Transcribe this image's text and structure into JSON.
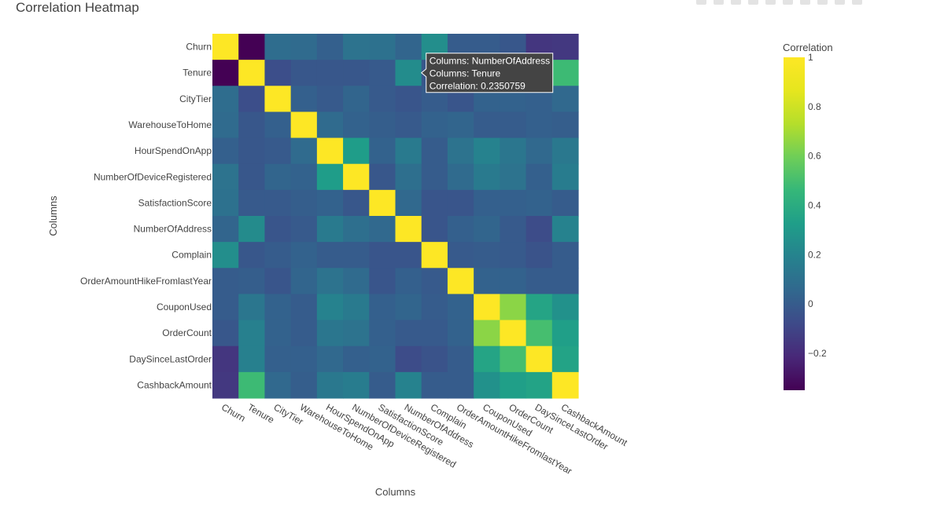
{
  "page": {
    "title": "Correlation Heatmap"
  },
  "modebar": {
    "icons": [
      "camera-icon",
      "zoom-icon",
      "pan-icon",
      "select-icon",
      "lasso-icon",
      "zoom-in-icon",
      "zoom-out-icon",
      "autoscale-icon",
      "reset-icon",
      "plotly-logo-icon"
    ]
  },
  "chart_data": {
    "type": "heatmap",
    "title": "Correlation Heatmap",
    "xlabel": "Columns",
    "ylabel": "Columns",
    "colorbar_title": "Correlation",
    "colorscale": "Viridis",
    "zlim": [
      -0.35,
      1
    ],
    "colorbar_ticks": [
      {
        "value": 1,
        "label": "1"
      },
      {
        "value": 0.8,
        "label": "0.8"
      },
      {
        "value": 0.6,
        "label": "0.6"
      },
      {
        "value": 0.4,
        "label": "0.4"
      },
      {
        "value": 0.2,
        "label": "0.2"
      },
      {
        "value": 0,
        "label": "0"
      },
      {
        "value": -0.2,
        "label": "−0.2"
      }
    ],
    "labels": [
      "Churn",
      "Tenure",
      "CityTier",
      "WarehouseToHome",
      "HourSpendOnApp",
      "NumberOfDeviceRegistered",
      "SatisfactionScore",
      "NumberOfAddress",
      "Complain",
      "OrderAmountHikeFromlastYear",
      "CouponUsed",
      "OrderCount",
      "DaySinceLastOrder",
      "CashbackAmount"
    ],
    "z": [
      [
        1.0,
        -0.35,
        0.08,
        0.07,
        0.02,
        0.11,
        0.1,
        0.04,
        0.25,
        0.0,
        0.0,
        -0.02,
        -0.16,
        -0.15
      ],
      [
        -0.35,
        1.0,
        -0.06,
        -0.02,
        -0.02,
        -0.02,
        -0.01,
        0.24,
        -0.02,
        0.01,
        0.13,
        0.18,
        0.18,
        0.48
      ],
      [
        0.08,
        -0.06,
        1.0,
        0.02,
        -0.01,
        0.04,
        -0.01,
        -0.03,
        0.0,
        -0.03,
        0.03,
        0.03,
        0.02,
        0.06
      ],
      [
        0.07,
        -0.02,
        0.02,
        1.0,
        0.07,
        0.03,
        0.01,
        -0.01,
        0.03,
        0.04,
        0.0,
        0.0,
        0.02,
        0.01
      ],
      [
        0.02,
        -0.02,
        -0.01,
        0.07,
        1.0,
        0.32,
        0.03,
        0.15,
        0.0,
        0.11,
        0.19,
        0.13,
        0.06,
        0.14
      ],
      [
        0.11,
        -0.02,
        0.04,
        0.03,
        0.32,
        1.0,
        -0.02,
        0.09,
        0.0,
        0.07,
        0.15,
        0.11,
        0.02,
        0.16
      ],
      [
        0.1,
        -0.01,
        -0.01,
        0.01,
        0.03,
        -0.02,
        1.0,
        0.06,
        -0.03,
        -0.03,
        0.02,
        0.02,
        0.03,
        0.0
      ],
      [
        0.04,
        0.2350759,
        -0.03,
        -0.01,
        0.15,
        0.09,
        0.06,
        1.0,
        -0.03,
        0.02,
        0.04,
        -0.01,
        -0.07,
        0.19
      ],
      [
        0.25,
        -0.02,
        0.0,
        0.03,
        0.0,
        0.0,
        -0.03,
        -0.03,
        1.0,
        -0.01,
        0.0,
        -0.01,
        -0.04,
        0.0
      ],
      [
        0.0,
        0.01,
        -0.03,
        0.04,
        0.11,
        0.07,
        -0.03,
        0.02,
        -0.01,
        1.0,
        0.03,
        0.03,
        0.0,
        0.0
      ],
      [
        0.0,
        0.13,
        0.03,
        0.0,
        0.19,
        0.15,
        0.02,
        0.04,
        0.0,
        0.03,
        1.0,
        0.65,
        0.36,
        0.26
      ],
      [
        -0.02,
        0.18,
        0.03,
        0.0,
        0.13,
        0.11,
        0.02,
        -0.01,
        -0.01,
        0.03,
        0.65,
        1.0,
        0.5,
        0.33
      ],
      [
        -0.16,
        0.18,
        0.02,
        0.02,
        0.06,
        0.02,
        0.03,
        -0.07,
        -0.04,
        0.0,
        0.36,
        0.5,
        1.0,
        0.35
      ],
      [
        -0.15,
        0.48,
        0.06,
        0.01,
        0.14,
        0.16,
        0.0,
        0.19,
        0.0,
        0.0,
        0.26,
        0.33,
        0.35,
        1.0
      ]
    ],
    "hover": {
      "x_label": "NumberOfAddress",
      "y_label": "Tenure",
      "line1": "Columns: NumberOfAddress",
      "line2": "Columns: Tenure",
      "line3": "Correlation: 0.2350759"
    }
  }
}
